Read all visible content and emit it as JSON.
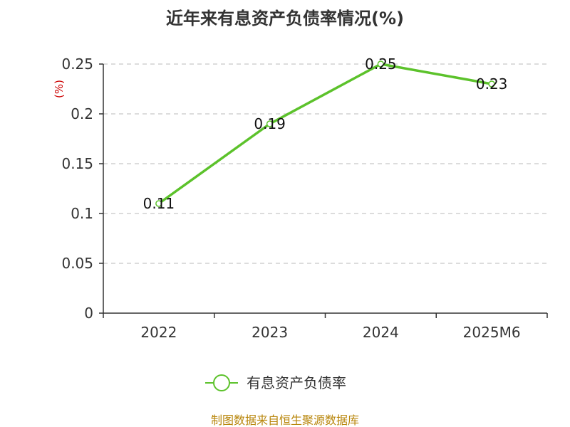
{
  "chart_data": {
    "type": "line",
    "title": "近年来有息资产负债率情况(%)",
    "unit_label": "(%)",
    "categories": [
      "2022",
      "2023",
      "2024",
      "2025M6"
    ],
    "series": [
      {
        "name": "有息资产负债率",
        "values": [
          0.11,
          0.19,
          0.25,
          0.23
        ],
        "color": "#5cc22b"
      }
    ],
    "y_ticks": [
      "0",
      "0.05",
      "0.1",
      "0.15",
      "0.2",
      "0.25"
    ],
    "ylim": [
      0,
      0.25
    ],
    "grid": true,
    "legend": "bottom-center"
  },
  "source": "制图数据来自恒生聚源数据库",
  "colors": {
    "line": "#5cc22b",
    "axis": "#333333",
    "grid": "#c8c8c8",
    "source": "#b8860b",
    "unit": "#cc0000"
  }
}
